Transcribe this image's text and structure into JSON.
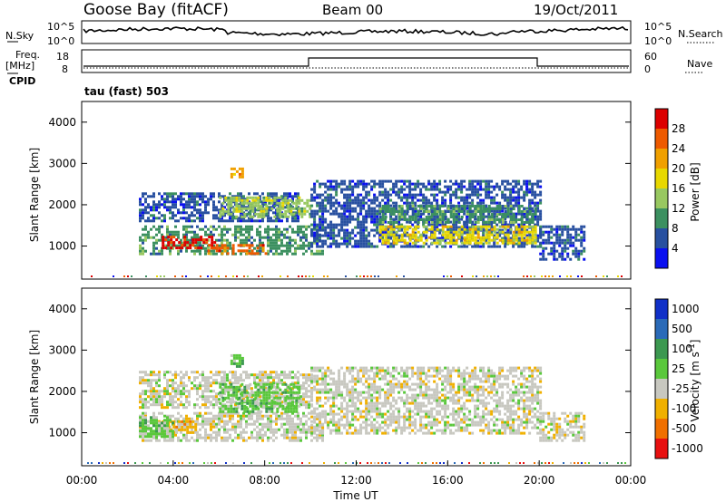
{
  "header": {
    "station": "Goose Bay (fitACF)",
    "beam": "Beam 00",
    "date": "19/Oct/2011"
  },
  "noise_panel": {
    "left_label": "N.Sky",
    "right_label": "N.Search",
    "left_ticks": [
      "10^5",
      "10^0"
    ],
    "right_ticks": [
      "10^5",
      "10^0"
    ]
  },
  "freq_panel": {
    "left_label_line1": "Freq.",
    "left_label_line2": "[MHz]",
    "cpid_label": "CPID",
    "left_ticks": [
      "18",
      "8"
    ],
    "right_label": "Nave",
    "right_ticks": [
      "60",
      "0"
    ],
    "cpid_text": "tau (fast) 503"
  },
  "chart_data": [
    {
      "type": "heatmap",
      "title": "",
      "ylabel": "Slant Range [km]",
      "xlabel": "Time UT",
      "ylim": [
        200,
        4500
      ],
      "xlim": [
        0,
        24
      ],
      "yticks": [
        "1000",
        "2000",
        "3000",
        "4000"
      ],
      "colorbar": {
        "label": "Power [dB]",
        "ticks": [
          "28",
          "24",
          "20",
          "16",
          "12",
          "8",
          "4"
        ],
        "colors": [
          "#dc0000",
          "#ee5a00",
          "#f0a000",
          "#e8d800",
          "#98c860",
          "#3c9060",
          "#2850a0",
          "#0a10f0"
        ]
      },
      "regions": [
        {
          "t0": 2.5,
          "t1": 10.5,
          "r0": 800,
          "r1": 1500,
          "level": 5
        },
        {
          "t0": 3.5,
          "t1": 5.8,
          "r0": 950,
          "r1": 1250,
          "level": 0
        },
        {
          "t0": 5.5,
          "t1": 8.0,
          "r0": 800,
          "r1": 1050,
          "level": 1
        },
        {
          "t0": 2.5,
          "t1": 9.5,
          "r0": 1600,
          "r1": 2300,
          "level": 6
        },
        {
          "t0": 6.0,
          "t1": 10.0,
          "r0": 1700,
          "r1": 2200,
          "level": 4
        },
        {
          "t0": 10.0,
          "t1": 20.0,
          "r0": 1000,
          "r1": 2600,
          "level": 6
        },
        {
          "t0": 13.0,
          "t1": 19.8,
          "r0": 1100,
          "r1": 1500,
          "level": 3
        },
        {
          "t0": 13.0,
          "t1": 19.8,
          "r0": 1550,
          "r1": 2000,
          "level": 5
        },
        {
          "t0": 20.0,
          "t1": 22.0,
          "r0": 700,
          "r1": 1500,
          "level": 6
        },
        {
          "t0": 6.5,
          "t1": 7.0,
          "r0": 2700,
          "r1": 2900,
          "level": 2
        }
      ]
    },
    {
      "type": "heatmap",
      "title": "",
      "ylabel": "Slant Range [km]",
      "xlabel": "Time UT",
      "ylim": [
        200,
        4500
      ],
      "xlim": [
        0,
        24
      ],
      "yticks": [
        "1000",
        "2000",
        "3000",
        "4000"
      ],
      "xticks": [
        "00:00",
        "04:00",
        "08:00",
        "12:00",
        "16:00",
        "20:00",
        "00:00"
      ],
      "colorbar": {
        "label": "Velocity [m s^-1]",
        "ticks": [
          "1000",
          "500",
          "100",
          "25",
          "-25",
          "-100",
          "-500",
          "-1000"
        ],
        "colors": [
          "#1030c8",
          "#2a6ab8",
          "#3c9850",
          "#5ac83c",
          "#c8c8c0",
          "#f0b000",
          "#f07000",
          "#e81010"
        ]
      },
      "regions": [
        {
          "t0": 2.5,
          "t1": 10.5,
          "r0": 800,
          "r1": 1500,
          "level": 4
        },
        {
          "t0": 3.5,
          "t1": 5.0,
          "r0": 1000,
          "r1": 1300,
          "level": 5
        },
        {
          "t0": 2.5,
          "t1": 4.0,
          "r0": 900,
          "r1": 1400,
          "level": 3
        },
        {
          "t0": 2.5,
          "t1": 10.0,
          "r0": 1600,
          "r1": 2500,
          "level": 4
        },
        {
          "t0": 10.0,
          "t1": 20.0,
          "r0": 1000,
          "r1": 2600,
          "level": 4
        },
        {
          "t0": 6.0,
          "t1": 9.5,
          "r0": 1500,
          "r1": 2200,
          "level": 3
        },
        {
          "t0": 20.0,
          "t1": 22.0,
          "r0": 800,
          "r1": 1500,
          "level": 4
        },
        {
          "t0": 6.5,
          "t1": 7.0,
          "r0": 2600,
          "r1": 2900,
          "level": 3
        }
      ]
    }
  ]
}
